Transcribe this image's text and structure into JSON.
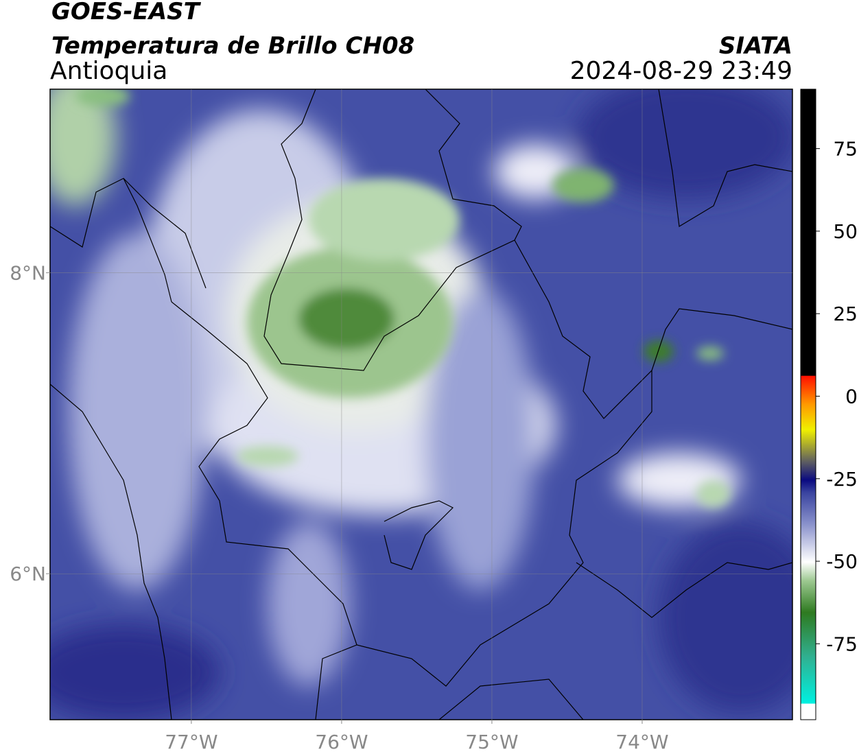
{
  "header": {
    "satellite": "GOES-EAST",
    "product": "Temperatura de Brillo CH08",
    "region": "Antioquia",
    "agency": "SIATA",
    "datetime": "2024-08-29 23:49"
  },
  "map": {
    "lonlim": [
      -77.94,
      -73.0
    ],
    "latlim": [
      5.03,
      9.22
    ],
    "xticks": [
      {
        "value": -77,
        "label": "77°W"
      },
      {
        "value": -76,
        "label": "76°W"
      },
      {
        "value": -75,
        "label": "75°W"
      },
      {
        "value": -74,
        "label": "74°W"
      }
    ],
    "yticks": [
      {
        "value": 8,
        "label": "8°N"
      },
      {
        "value": 6,
        "label": "6°N"
      }
    ]
  },
  "colorbar": {
    "lim": [
      -98,
      93
    ],
    "ticks": [
      75,
      50,
      25,
      0,
      -25,
      -50,
      -75
    ]
  }
}
